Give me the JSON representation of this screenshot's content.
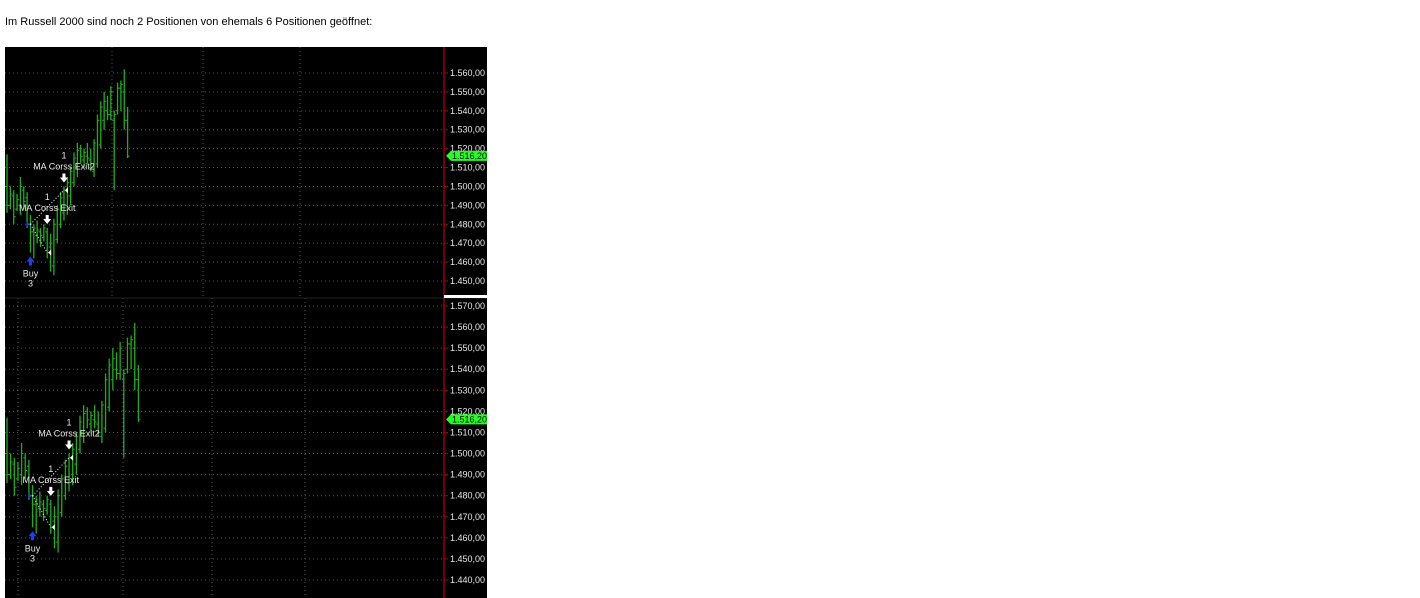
{
  "intro_text": "Im Russell 2000 sind noch 2 Positionen von ehemals 6 Positionen geöffnet:",
  "chart_data": [
    {
      "type": "ohlc",
      "grid": true,
      "ylim": [
        1445,
        1573
      ],
      "yticks": [
        "1.560,00",
        "1.550,00",
        "1.540,00",
        "1.530,00",
        "1.520,00",
        "1.510,00",
        "1.500,00",
        "1.490,00",
        "1.480,00",
        "1.470,00",
        "1.460,00",
        "1.450,00"
      ],
      "ytick_values": [
        1560,
        1550,
        1540,
        1530,
        1520,
        1510,
        1500,
        1490,
        1480,
        1470,
        1460,
        1450
      ],
      "last_price": 1516.2,
      "last_price_label": "1.516,20"
    },
    {
      "type": "ohlc",
      "grid": true,
      "ylim": [
        1434,
        1574
      ],
      "yticks": [
        "1.570,00",
        "1.560,00",
        "1.550,00",
        "1.540,00",
        "1.530,00",
        "1.520,00",
        "1.510,00",
        "1.500,00",
        "1.490,00",
        "1.480,00",
        "1.470,00",
        "1.460,00",
        "1.450,00",
        "1.440,00"
      ],
      "ytick_values": [
        1570,
        1560,
        1550,
        1540,
        1530,
        1520,
        1510,
        1500,
        1490,
        1480,
        1470,
        1460,
        1450,
        1440
      ],
      "last_price": 1516.2,
      "last_price_label": "1.516,20"
    }
  ],
  "bars": [
    [
      1500,
      1517,
      1486,
      1490
    ],
    [
      1490,
      1500,
      1488,
      1496
    ],
    [
      1495,
      1498,
      1480,
      1484
    ],
    [
      1488,
      1496,
      1487,
      1493
    ],
    [
      1490,
      1505,
      1485,
      1500
    ],
    [
      1498,
      1500,
      1488,
      1492
    ],
    [
      1494,
      1497,
      1478,
      1480
    ],
    [
      1480,
      1485,
      1465,
      1476
    ],
    [
      1476,
      1480,
      1462,
      1478
    ],
    [
      1474,
      1482,
      1470,
      1477
    ],
    [
      1476,
      1478,
      1468,
      1474
    ],
    [
      1473,
      1480,
      1471,
      1478
    ],
    [
      1476,
      1478,
      1462,
      1465
    ],
    [
      1468,
      1475,
      1455,
      1470
    ],
    [
      1458,
      1483,
      1453,
      1480
    ],
    [
      1472,
      1490,
      1470,
      1488
    ],
    [
      1480,
      1497,
      1478,
      1494
    ],
    [
      1486,
      1500,
      1482,
      1498
    ],
    [
      1490,
      1505,
      1485,
      1502
    ],
    [
      1495,
      1510,
      1490,
      1508
    ],
    [
      1502,
      1518,
      1500,
      1515
    ],
    [
      1510,
      1523,
      1505,
      1519
    ],
    [
      1520,
      1522,
      1512,
      1516
    ],
    [
      1514,
      1520,
      1510,
      1518
    ],
    [
      1516,
      1523,
      1512,
      1515
    ],
    [
      1514,
      1520,
      1508,
      1510
    ],
    [
      1508,
      1525,
      1505,
      1523
    ],
    [
      1512,
      1538,
      1510,
      1535
    ],
    [
      1522,
      1545,
      1520,
      1542
    ],
    [
      1535,
      1550,
      1530,
      1545
    ],
    [
      1540,
      1548,
      1535,
      1538
    ],
    [
      1538,
      1553,
      1535,
      1550
    ],
    [
      1535,
      1540,
      1498,
      1538
    ],
    [
      1540,
      1555,
      1538,
      1552
    ],
    [
      1552,
      1556,
      1540,
      1554
    ],
    [
      1550,
      1562,
      1530,
      1535
    ],
    [
      1535,
      1542,
      1515,
      1516
    ]
  ],
  "markers": {
    "buy": {
      "bar": 7,
      "label": "Buy",
      "qty": "3",
      "color": "#1f3cff"
    },
    "exit1": {
      "bar": 12,
      "label": "MA Corss Exit",
      "qty": "1"
    },
    "exit2": {
      "bar": 17,
      "label": "MA Corss Exit2",
      "qty": "1"
    }
  },
  "colors": {
    "bar": "#1fae1f",
    "background": "#000000",
    "axis": "#b00000",
    "price_tag": "#22ff22",
    "grid": "#555555"
  }
}
